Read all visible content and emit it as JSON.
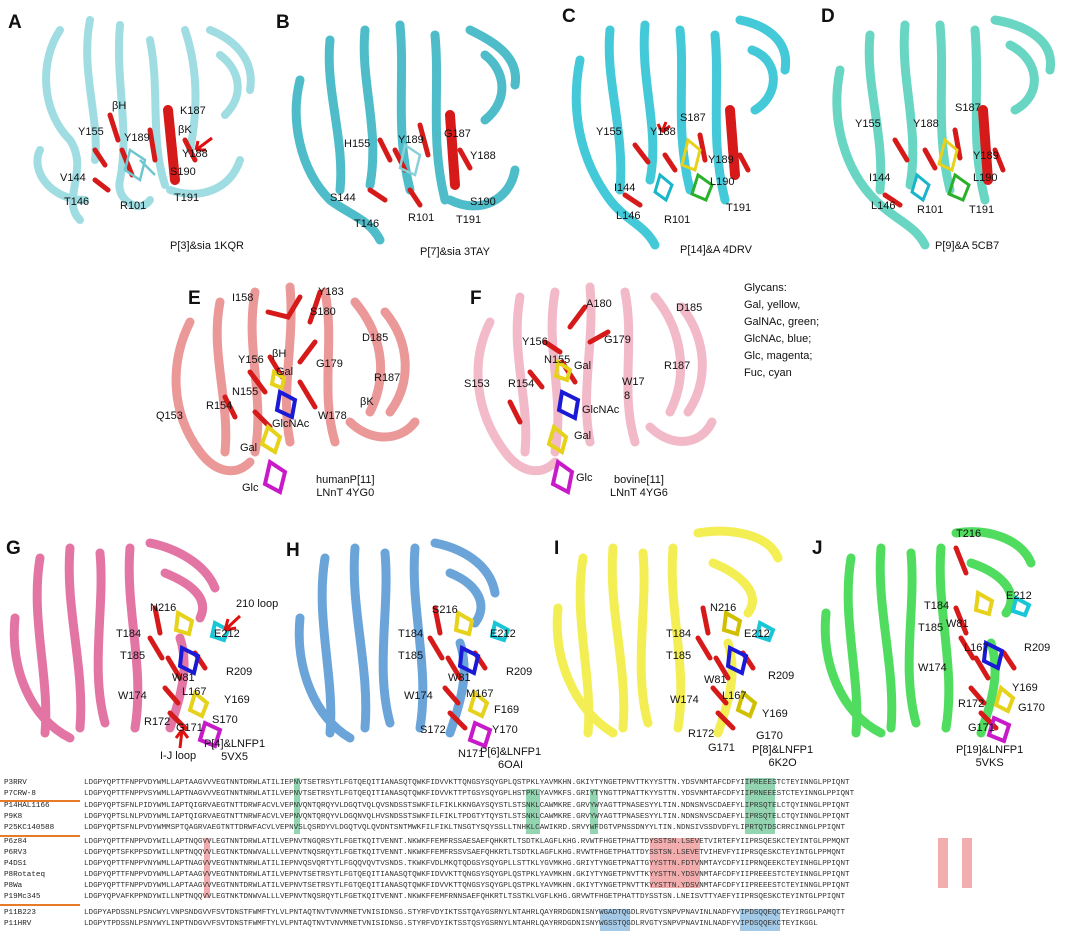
{
  "panels": [
    {
      "id": "A",
      "label": "A",
      "caption": "P[3]&sia 1KQR",
      "color": "#8fd8de",
      "residues": [
        "βH",
        "K187",
        "Y155",
        "Y189",
        "βK",
        "Y188",
        "V144",
        "S190",
        "T146",
        "R101",
        "T191"
      ]
    },
    {
      "id": "B",
      "label": "B",
      "caption": "P[7]&sia 3TAY",
      "color": "#3bb6c4",
      "residues": [
        "G187",
        "H155",
        "Y189",
        "Y188",
        "S144",
        "S190",
        "T146",
        "R101",
        "T191"
      ]
    },
    {
      "id": "C",
      "label": "C",
      "caption": "P[14]&A 4DRV",
      "color": "#2fc4d4",
      "residues": [
        "S187",
        "Y155",
        "Y188",
        "Y189",
        "I144",
        "L190",
        "L146",
        "R101",
        "T191"
      ]
    },
    {
      "id": "D",
      "label": "D",
      "caption": "P[9]&A 5CB7",
      "color": "#59d1bd",
      "residues": [
        "S187",
        "Y155",
        "Y188",
        "Y189",
        "I144",
        "L190",
        "L146",
        "R101",
        "T191"
      ]
    },
    {
      "id": "E",
      "label": "E",
      "caption_lines": [
        "humanP[11]",
        "LNnT 4YG0"
      ],
      "color": "#e88d8d",
      "residues": [
        "I158",
        "Y183",
        "S180",
        "D185",
        "Y156",
        "βH",
        "Gal",
        "G179",
        "R187",
        "Q153",
        "R154",
        "N155",
        "βK",
        "W178",
        "GlcNAc",
        "Gal",
        "Glc"
      ]
    },
    {
      "id": "F",
      "label": "F",
      "caption_lines": [
        "bovine[11]",
        "LNnT 4YG6"
      ],
      "color": "#f2b6c6",
      "residues": [
        "A180",
        "D185",
        "Y156",
        "Gal",
        "G179",
        "N155",
        "R187",
        "S153",
        "R154",
        "W17",
        "8",
        "GlcNAc",
        "Gal",
        "Glc"
      ]
    },
    {
      "id": "G",
      "label": "G",
      "caption_lines": [
        "P[4]&LNFP1",
        "5VX5"
      ],
      "color": "#e0679c",
      "residues": [
        "N216",
        "210 loop",
        "T184",
        "E212",
        "T185",
        "W81",
        "R209",
        "W174",
        "L167",
        "Y169",
        "S170",
        "R172",
        "G171",
        "I-J loop"
      ]
    },
    {
      "id": "H",
      "label": "H",
      "caption_lines": [
        "P[6]&LNFP1",
        "6OAI"
      ],
      "color": "#5b9bd5",
      "residues": [
        "S216",
        "T184",
        "E212",
        "T185",
        "W81",
        "R209",
        "M167",
        "W174",
        "F169",
        "S172",
        "Y170",
        "N171"
      ]
    },
    {
      "id": "I",
      "label": "I",
      "caption_lines": [
        "P[8]&LNFP1",
        "6K2O"
      ],
      "color": "#f3ee4a",
      "residues": [
        "N216",
        "T184",
        "E212",
        "T185",
        "W81",
        "R209",
        "L167",
        "W174",
        "Y169",
        "R172",
        "G170",
        "G171"
      ]
    },
    {
      "id": "J",
      "label": "J",
      "caption_lines": [
        "P[19]&LNFP1",
        "5VKS"
      ],
      "color": "#3ed94e",
      "residues": [
        "T216",
        "E212",
        "T184",
        "W81",
        "T185",
        "L167",
        "R209",
        "W174",
        "Y169",
        "R172",
        "G170",
        "G171"
      ]
    }
  ],
  "legend": [
    "Glycans:",
    "Gal, yellow,",
    "GalNAc, green;",
    "GlcNAc, blue;",
    "Glc, magenta;",
    "Fuc, cyan"
  ],
  "alignment": {
    "rows": [
      {
        "name": "P3RRV",
        "seq": "LDGPYQPTTFNPPVDYWMLLAPTAAGVVVEGTNNTDRWLATILIEPNVTSETRSYTLFGTQEQITIANASQTQWKFIDVVKTTQNGSYSQYGPLQSTPKLYAVMKHN.GKIYTYNGETPNVTTKYYSTTN.YDSVNMTAFCDFYIIPREEESTCTEYINNGLPPIQNT"
      },
      {
        "name": "P7CRW-8",
        "seq": "LDGPYQPTTFNPPVSYWMLLAPTNAGVVVEGTNNTNRWLATILVEPNVTSETRSYTLFGTQEQITIANASQTQWKFIDVVKTTPTGSYSQYGPLHSTPKLYAVMKFS.GRIYTYNGTTPNATTKYYSTTN.YDSVNMTAFCDFYIIPRNEEESTCTEYINNGLPPIQNT"
      },
      {
        "name": "P14HAL1166",
        "seq": "LDGPYQPTSFNLPIDYWMLIAPTQIGRVAEGTNTTDRWFACVLVEPNVQNTQRQYVLDGQTVQLQVSNDSSTSWKFILFIKLKKNGAYSQYSTLSTSNKLCAWMKRE.GRVYWYAGTTPNASESYYLTIN.NDNSNVSCDAEFYLIPRSQTELCTQYINNGLPPIQNT"
      },
      {
        "name": "P9K8",
        "seq": "LDGPYQPTSLNLPVDYWMLIAPTQIGRVAEGTNTTNRWFACVLVEPNVQNTQRQYVLDGQNVQLHVSNDSSTSWKFILFIKLTPDGTYTQYSTLSTSNKLCAWMKRE.GRVYWYAGTTPNASESYYLTIN.NDNSNVSCDAEFYLIPRSQTELCTQYINNGLPPIQNT"
      },
      {
        "name": "P25KC140588",
        "seq": "LDGPYQPTSFNLPVDYWMMSPTQAGRVAEGTNTTDRWFACVLVEPNVSLQSRDYVLDGQTVQLQVDNTSNTMWKFILFIKLTNSGTYSQYSSLLTNHKLCAWIKRD.SRVYWFDGTVPNSSDNYYLTIN.NDNSIVSSDVDFYLIPRTQTDSCRRCINNGLPPIQNT"
      },
      {
        "name": "P6z84",
        "seq": "LDGPYQPTTFNPPVDYWILLAPTNQGVVLEGTNNTDRWLATILVEPNVTNGQRSYTLFGETKQITVENNT.NKWKFFEMFRSSAESAEFQHKRTLTSDTKLAGFLKHG.RVWTFHGETPHATTDYSSTSN.LSEVETVIRTEFYIIPRSQESKCTEYINTGLPPMQNT"
      },
      {
        "name": "P6RV3",
        "seq": "LDGPYQPTSFKPPSDYWILLNPTNQQVVLEGTNKTDNWVALLLVEPNVTNQSRQYTLFGETKQITVENNT.NKWKFFEMFRSSVSAEFQHKRTLTSDTKLAGFLKHG.RVWTFHGETPHATTDYSSTSN.LSEVETVIHEVFYIIPRSQESKCTEYINTGLPPMQNT"
      },
      {
        "name": "P4DS1",
        "seq": "LDGPYQPTTFNPPVNYWMLLAPTNAGVVVEGTNNTNRWLATILIEPNVQSVQRTYTLFGQQVQVTVSNDS.TKWKFVDLMKQTQDGSYSQYGPLLSTTKLYGVMKHG.GRIYTYNGETPNATTGYYSTTN.FDTVNMTAYCDFYIIPRNQEEKCTEYINHGLPPIQNT"
      },
      {
        "name": "P8Rotateq",
        "seq": "LDGPYQPTTFNPPVDYWMLLAPTAAGVVVEGTNNTDRWLATILVEPNVTSETRSYTLFGTQEQITIANASQTQWKFIDVVKTTQNGSYSQYGPLQSTPKLYAVMKHN.GKIYTYNGETPNVTTKYYSTTN.YDSVNMTAFCDFYIIPREEESTCTEYINNGLPPIQNT"
      },
      {
        "name": "P8Wa",
        "seq": "LDGPYQPTTFNPPVDYWMLLAPTAAGVVVEGTNNTDRWLATILVEPNVTSETRSYTLFGTQEQITIANASQTQWKFIDVVKTTQNGSYSQYGPLQSTPKLYAVMKHN.GKIYTYNGETPNVTTKYYSTTN.YDSVNMTAFCDFYIIPREEESTCTEYINNGLPPIQNT"
      },
      {
        "name": "P19Mc345",
        "seq": "LDGPYQPVAFKPPNDYWILLNPTNQQVVLEGTNKTDNWVALLLVEPNVTNQSRQYTLFGETKQITVENNT.NKWKFFEMFRNNSAEFQHKRTLTSSTKLVGFLKHG.GRVWTFHGETPHATTDYSSTSN.LNEISVTTYAEFYIIPRSQESKCTEYINTGLPPIQNT"
      },
      {
        "name": "P11B223",
        "seq": "LDGPYAPDSSNLPSNCWYLVNPSNDGVVFSVTDNSTFWMFTYLVLPNTAQTNVTVNVMNETVNISIDNSG.STYRFVDYIKTSSTQAYGSRNYLNTAHRLQAYRRDGDNISNYWGADTQGDLRVGTYSNPVPNAVINLNADFYVIPDSQQEQCTEYIRGGLPAMQTT"
      },
      {
        "name": "P11HRV",
        "seq": "LDGPYTPDSSNLPSNYWYLINPTNDGVVFSVTDNSTFWMFTYLVLPNTAQTNVTVNVMNETVNISIDNSG.STYRFVDYIKTSSTQSYGSRNYLNTAHRLQAYRRDGDNISNYWGSSTQGDLRVGTYSNPVPNAVINLNADFYVIPDSQQEKCTEYIKGGL"
      }
    ]
  }
}
